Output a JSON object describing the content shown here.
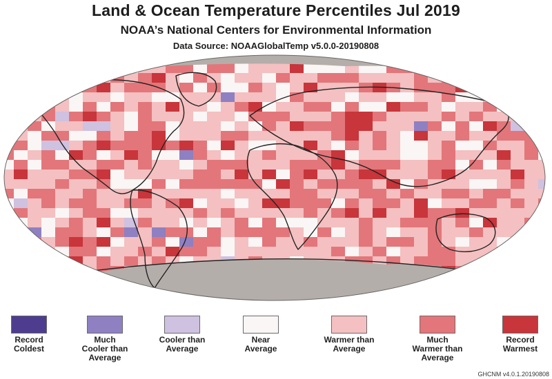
{
  "header": {
    "title": "Land & Ocean Temperature Percentiles Jul 2019",
    "subtitle": "NOAA’s National Centers for Environmental Information",
    "source": "Data Source: NOAAGlobalTemp v5.0.0-20190808"
  },
  "colors": {
    "background": "#ffffff",
    "no_data": "#b4aeaa",
    "coastline": "#222222"
  },
  "legend": [
    {
      "label": "Record\nColdest",
      "color": "#4e3d8e"
    },
    {
      "label": "Much\nCooler than\nAverage",
      "color": "#8f80c2"
    },
    {
      "label": "Cooler than\nAverage",
      "color": "#cfc1e0"
    },
    {
      "label": "Near\nAverage",
      "color": "#f9f6f5"
    },
    {
      "label": "Warmer than\nAverage",
      "color": "#f4c0c1"
    },
    {
      "label": "Much\nWarmer than\nAverage",
      "color": "#e3767a"
    },
    {
      "label": "Record\nWarmest",
      "color": "#c8353a"
    }
  ],
  "footer": {
    "version": "GHCNM v4.0.1.20190808"
  }
}
